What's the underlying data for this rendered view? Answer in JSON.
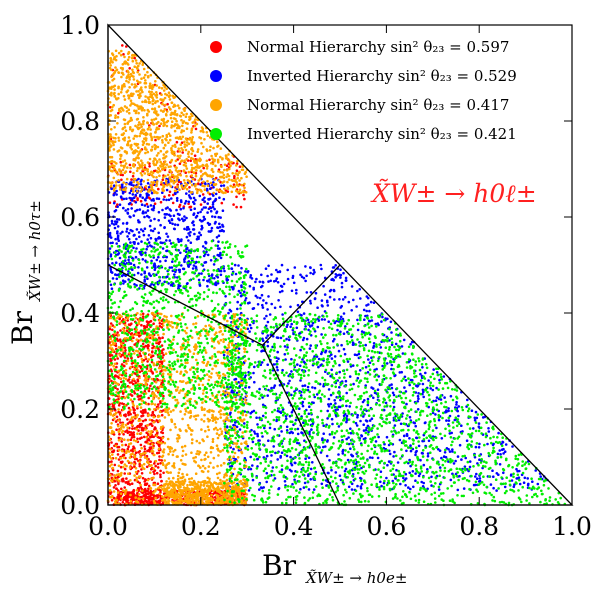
{
  "chart_data": {
    "type": "scatter",
    "title": "",
    "xlabel_main": "Br",
    "xlabel_sub": "X̃W± → h0e±",
    "ylabel_main": "Br",
    "ylabel_sub": "X̃W± → h0τ±",
    "xlim": [
      0.0,
      1.0
    ],
    "ylim": [
      0.0,
      1.0
    ],
    "x_ticks": [
      "0.0",
      "0.2",
      "0.4",
      "0.6",
      "0.8",
      "1.0"
    ],
    "y_ticks": [
      "0.0",
      "0.2",
      "0.4",
      "0.6",
      "0.8",
      "1.0"
    ],
    "grid": false,
    "legend_position": "top-right",
    "annotation": "X̃W± → h0ℓ±",
    "annotation_color": "#ff2020",
    "region_boundaries": {
      "simplex": [
        [
          0,
          0
        ],
        [
          1,
          0
        ],
        [
          0,
          1
        ]
      ],
      "center": [
        0.333,
        0.333
      ],
      "lines": [
        [
          [
            0.333,
            0.333
          ],
          [
            0.0,
            0.5
          ]
        ],
        [
          [
            0.333,
            0.333
          ],
          [
            0.5,
            0.0
          ]
        ],
        [
          [
            0.333,
            0.333
          ],
          [
            0.5,
            0.5
          ]
        ]
      ]
    },
    "series": [
      {
        "name": "Normal Hierarchy sin² θ₂₃ = 0.597",
        "color": "#ff0000",
        "clusters": [
          {
            "x": [
              0.0,
              0.12
            ],
            "y": [
              0.0,
              0.4
            ],
            "n": 900
          },
          {
            "x": [
              0.02,
              0.3
            ],
            "y": [
              0.0,
              0.03
            ],
            "n": 400
          },
          {
            "x": [
              0.0,
              0.28
            ],
            "y": [
              0.68,
              0.98
            ],
            "n": 60
          },
          {
            "x": [
              0.0,
              0.3
            ],
            "y": [
              0.62,
              0.72
            ],
            "n": 140
          }
        ]
      },
      {
        "name": "Inverted Hierarchy sin² θ₂₃ = 0.529",
        "color": "#0000ff",
        "clusters": [
          {
            "x": [
              0.0,
              0.25
            ],
            "y": [
              0.45,
              0.68
            ],
            "n": 700
          },
          {
            "x": [
              0.25,
              0.95
            ],
            "y": [
              0.03,
              0.5
            ],
            "n": 1400
          }
        ]
      },
      {
        "name": "Normal Hierarchy sin² θ₂₃ = 0.417",
        "color": "#ffa500",
        "clusters": [
          {
            "x": [
              0.0,
              0.3
            ],
            "y": [
              0.65,
              0.95
            ],
            "n": 1100
          },
          {
            "x": [
              0.0,
              0.3
            ],
            "y": [
              0.0,
              0.4
            ],
            "n": 1200
          },
          {
            "x": [
              0.12,
              0.3
            ],
            "y": [
              0.0,
              0.05
            ],
            "n": 500
          }
        ]
      },
      {
        "name": "Inverted Hierarchy sin² θ₂₃ = 0.421",
        "color": "#00ee00",
        "clusters": [
          {
            "x": [
              0.0,
              0.3
            ],
            "y": [
              0.2,
              0.55
            ],
            "n": 900
          },
          {
            "x": [
              0.25,
              0.99
            ],
            "y": [
              0.0,
              0.4
            ],
            "n": 1800
          }
        ]
      }
    ]
  }
}
